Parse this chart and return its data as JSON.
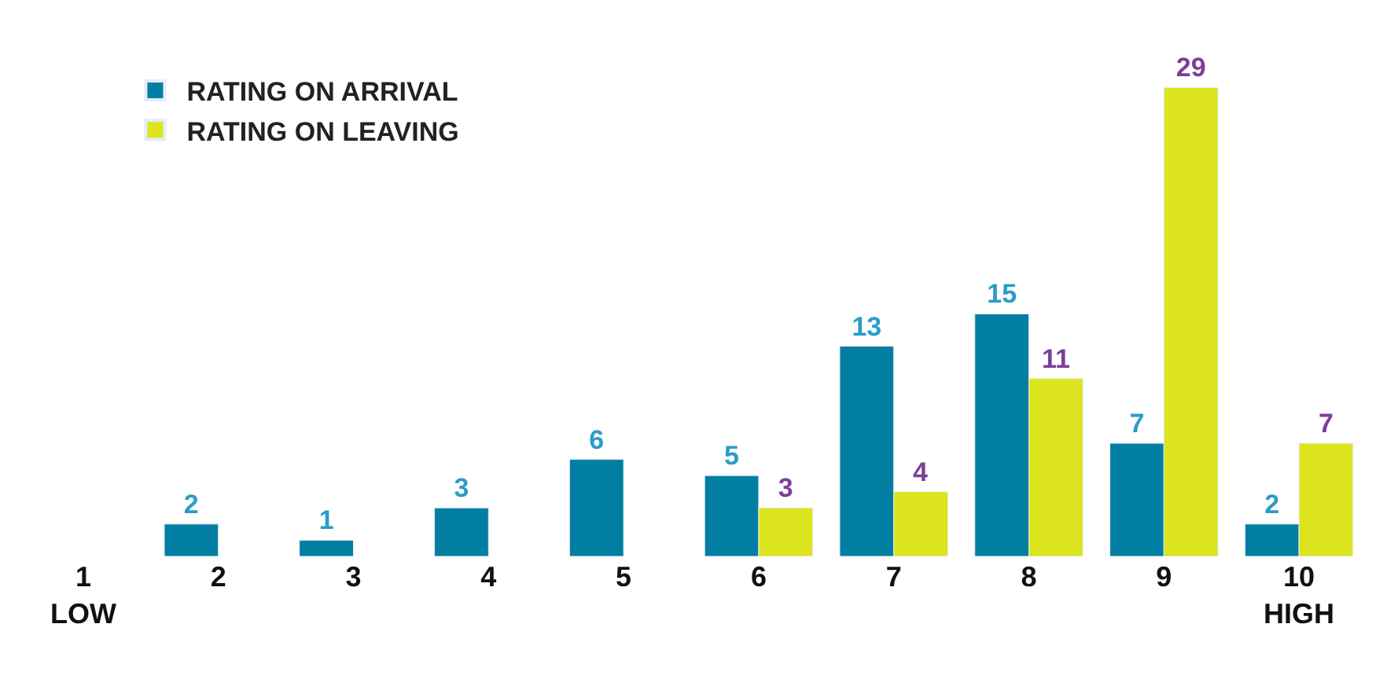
{
  "chart_data": {
    "type": "bar",
    "categories": [
      "1\nLOW",
      "2",
      "3",
      "4",
      "5",
      "6",
      "7",
      "8",
      "9",
      "10\nHIGH"
    ],
    "series": [
      {
        "name": "RATING ON ARRIVAL",
        "color": "#037ea3",
        "values": [
          null,
          2,
          1,
          3,
          6,
          5,
          13,
          15,
          7,
          2
        ]
      },
      {
        "name": "RATING ON LEAVING",
        "color": "#dbe41c",
        "values": [
          null,
          null,
          null,
          null,
          null,
          3,
          4,
          11,
          29,
          7
        ]
      }
    ],
    "data_labels": true,
    "legend": "top left"
  }
}
